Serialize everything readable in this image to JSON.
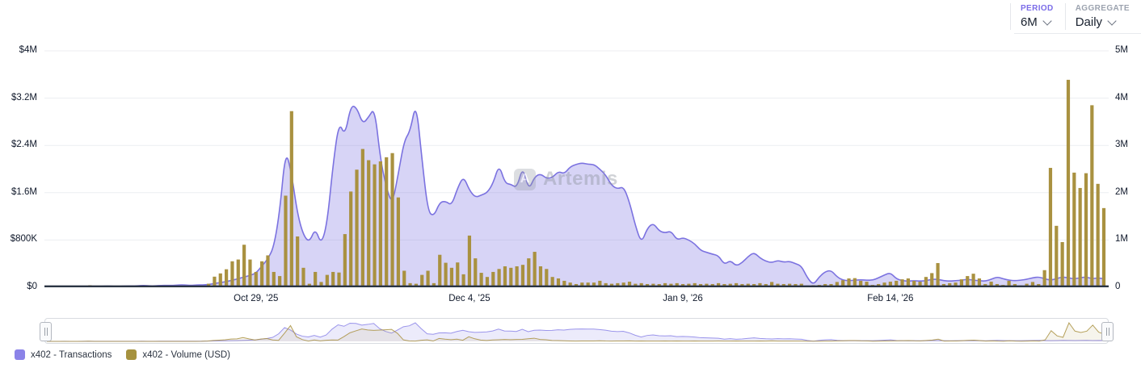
{
  "header": {
    "period_label": "PERIOD",
    "period_value": "6M",
    "aggregate_label": "AGGREGATE",
    "aggregate_value": "Daily"
  },
  "watermark": {
    "logo_letter": "A",
    "text": "Artemis"
  },
  "colors": {
    "transactions_line": "#7b72e0",
    "transactions_fill": "rgba(123,114,224,0.30)",
    "volume_bar": "#a99140",
    "legend_transactions": "#8b83e8",
    "legend_volume": "#a6923f",
    "grid": "#eceef1",
    "baseline": "#2b3544"
  },
  "chart_data": {
    "type": "dual-axis area + bar, daily time series",
    "title": "",
    "left_axis": {
      "label": "Volume (USD)",
      "unit": "USD",
      "min": 0,
      "max": 4000000,
      "ticks": [
        {
          "label": "$4M",
          "v": 4000
        },
        {
          "label": "$3.2M",
          "v": 3200
        },
        {
          "label": "$2.4M",
          "v": 2400
        },
        {
          "label": "$1.6M",
          "v": 1600
        },
        {
          "label": "$800K",
          "v": 800
        },
        {
          "label": "$0",
          "v": 0
        }
      ]
    },
    "right_axis": {
      "label": "Transactions",
      "unit": "count",
      "min": 0,
      "max": 5000000,
      "ticks": [
        {
          "label": "5M",
          "v": 5
        },
        {
          "label": "4M",
          "v": 4
        },
        {
          "label": "3M",
          "v": 3
        },
        {
          "label": "2M",
          "v": 2
        },
        {
          "label": "1M",
          "v": 1
        },
        {
          "label": "0",
          "v": 0
        }
      ]
    },
    "x_ticks": [
      {
        "label": "Oct 29, '25",
        "i": 35
      },
      {
        "label": "Dec 4, '25",
        "i": 71
      },
      {
        "label": "Jan 9, '26",
        "i": 107
      },
      {
        "label": "Feb 14, '26",
        "i": 142
      }
    ],
    "n_days": 179,
    "series": [
      {
        "name": "x402 - Transactions",
        "type": "area",
        "axis": "right",
        "unit": "millions",
        "values": [
          0.01,
          0.01,
          0.01,
          0.02,
          0.01,
          0.01,
          0.02,
          0.02,
          0.02,
          0.02,
          0.03,
          0.02,
          0.02,
          0.03,
          0.03,
          0.03,
          0.04,
          0.03,
          0.03,
          0.04,
          0.04,
          0.04,
          0.05,
          0.05,
          0.04,
          0.05,
          0.05,
          0.06,
          0.08,
          0.1,
          0.12,
          0.15,
          0.18,
          0.22,
          0.25,
          0.3,
          0.45,
          0.6,
          0.85,
          1.6,
          2.92,
          2.4,
          1.55,
          1.1,
          0.95,
          1.25,
          0.9,
          1.35,
          2.6,
          3.5,
          3.2,
          3.85,
          3.8,
          3.45,
          3.6,
          3.8,
          2.7,
          2.1,
          1.75,
          2.4,
          3.1,
          3.3,
          3.93,
          2.7,
          1.6,
          1.5,
          1.8,
          1.82,
          1.73,
          2.1,
          2.35,
          2.05,
          1.9,
          1.95,
          2.0,
          2.2,
          2.6,
          2.2,
          2.18,
          2.1,
          2.56,
          2.05,
          2.34,
          2.4,
          2.3,
          2.32,
          2.45,
          2.4,
          2.55,
          2.6,
          2.63,
          2.6,
          2.6,
          2.5,
          2.37,
          2.15,
          2.08,
          2.13,
          1.8,
          1.3,
          0.93,
          1.25,
          1.36,
          1.19,
          1.15,
          1.19,
          1.0,
          1.05,
          1.0,
          0.92,
          0.78,
          0.74,
          0.7,
          0.67,
          0.48,
          0.57,
          0.45,
          0.52,
          0.65,
          0.74,
          0.62,
          0.55,
          0.52,
          0.57,
          0.53,
          0.55,
          0.5,
          0.45,
          0.2,
          0.05,
          0.22,
          0.33,
          0.36,
          0.22,
          0.15,
          0.14,
          0.15,
          0.16,
          0.15,
          0.15,
          0.2,
          0.26,
          0.31,
          0.18,
          0.14,
          0.13,
          0.14,
          0.13,
          0.14,
          0.17,
          0.17,
          0.14,
          0.13,
          0.14,
          0.15,
          0.17,
          0.15,
          0.14,
          0.13,
          0.17,
          0.22,
          0.18,
          0.15,
          0.14,
          0.15,
          0.17,
          0.2,
          0.22,
          0.18,
          0.15,
          0.18,
          0.22,
          0.2,
          0.18,
          0.2,
          0.22,
          0.18,
          0.2,
          0.18
        ]
      },
      {
        "name": "x402 - Volume (USD)",
        "type": "bar",
        "axis": "left",
        "unit": "thousand USD",
        "values": [
          0,
          0,
          0,
          0,
          0,
          0,
          0,
          35,
          0,
          0,
          0,
          0,
          0,
          0,
          0,
          0,
          0,
          0,
          0,
          0,
          0,
          0,
          0,
          0,
          0,
          0,
          10,
          60,
          180,
          235,
          305,
          440,
          470,
          720,
          470,
          260,
          440,
          540,
          260,
          190,
          1550,
          2980,
          860,
          330,
          60,
          260,
          90,
          210,
          260,
          250,
          900,
          1620,
          1990,
          2340,
          2150,
          2080,
          2130,
          2200,
          2270,
          1520,
          280,
          70,
          60,
          210,
          280,
          70,
          550,
          415,
          330,
          420,
          220,
          875,
          490,
          245,
          175,
          260,
          310,
          355,
          330,
          355,
          380,
          490,
          600,
          355,
          310,
          175,
          150,
          110,
          80,
          55,
          80,
          80,
          80,
          110,
          70,
          60,
          70,
          80,
          95,
          60,
          70,
          55,
          60,
          55,
          70,
          60,
          70,
          55,
          60,
          70,
          55,
          60,
          55,
          70,
          55,
          60,
          70,
          55,
          60,
          55,
          70,
          55,
          90,
          60,
          55,
          60,
          55,
          60,
          30,
          35,
          40,
          55,
          55,
          90,
          120,
          150,
          155,
          110,
          95,
          40,
          55,
          80,
          95,
          110,
          135,
          150,
          110,
          95,
          175,
          240,
          410,
          55,
          70,
          80,
          135,
          190,
          230,
          150,
          55,
          95,
          55,
          40,
          110,
          55,
          30,
          60,
          90,
          55,
          290,
          2020,
          1040,
          765,
          3510,
          1940,
          1680,
          1930,
          3080,
          1750,
          1340
        ]
      }
    ],
    "legend_position": "bottom-left",
    "grid": true
  },
  "legend": [
    {
      "label": "x402 - Transactions",
      "color": "#8b83e8"
    },
    {
      "label": "x402 - Volume (USD)",
      "color": "#a6923f"
    }
  ]
}
